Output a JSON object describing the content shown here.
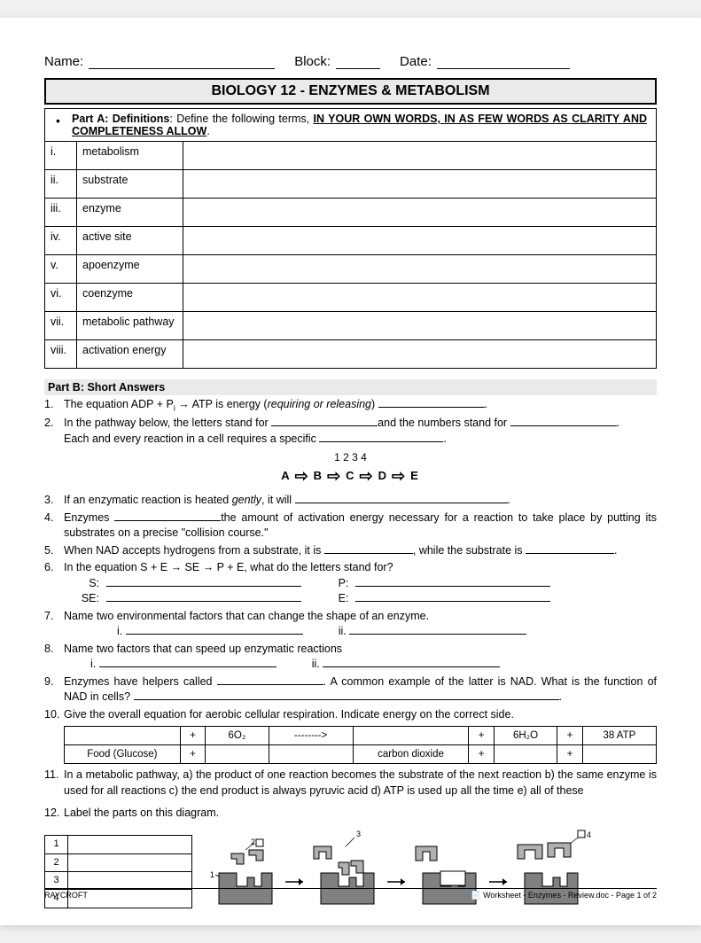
{
  "header": {
    "name_label": "Name:",
    "block_label": "Block:",
    "date_label": "Date:"
  },
  "title": "BIOLOGY 12 - ENZYMES & METABOLISM",
  "partA": {
    "instruction_prefix": "Part A: Definitions",
    "instruction_mid": ":   Define the following terms, ",
    "instruction_underlined": "IN YOUR OWN WORDS, IN AS FEW WORDS AS CLARITY AND COMPLETENESS ALLOW",
    "rows": [
      {
        "num": "i.",
        "term": "metabolism"
      },
      {
        "num": "ii.",
        "term": "substrate"
      },
      {
        "num": "iii.",
        "term": "enzyme"
      },
      {
        "num": "iv.",
        "term": "active site"
      },
      {
        "num": "v.",
        "term": "apoenzyme"
      },
      {
        "num": "vi.",
        "term": "coenzyme"
      },
      {
        "num": "vii.",
        "term": "metabolic pathway"
      },
      {
        "num": "viii.",
        "term": "activation energy"
      }
    ]
  },
  "partB": {
    "header": "Part B:  Short Answers",
    "q1_a": "The equation ADP + P",
    "q1_b": " →  ATP is energy (",
    "q1_c": "requiring or releasing",
    "q1_d": ") ",
    "q2_a": "In the pathway below, the letters stand for ",
    "q2_b": "and the numbers stand for ",
    "q2_c": "Each and every reaction in a cell requires a specific ",
    "pathway_nums": "1                2                3                4",
    "pathway_letters": [
      "A",
      "B",
      "C",
      "D",
      "E"
    ],
    "q3": "If an enzymatic reaction is heated ",
    "q3_italic": "gently",
    "q3_b": ", it will ",
    "q4_a": "Enzymes ",
    "q4_b": "the amount of activation energy necessary for a reaction to take place by putting its substrates on a precise \"collision course.\"",
    "q5_a": "When NAD accepts hydrogens from a substrate, it is ",
    "q5_b": ", while the substrate is ",
    "q6": "In the equation S + E → SE → P + E, what do the letters stand for?",
    "q6_S": "S:",
    "q6_SE": "SE:",
    "q6_P": "P:",
    "q6_E": "E:",
    "q7": "Name two environmental factors that can change the shape of an enzyme.",
    "q8": "Name two factors that can speed up enzymatic reactions",
    "sub_i": "i.",
    "sub_ii": "ii.",
    "q9_a": "Enzymes have helpers called ",
    "q9_b": ".  A common example of the latter is NAD.  What is the function of NAD in cells? ",
    "q10": "Give the overall equation for aerobic cellular respiration.  Indicate energy on the correct side.",
    "eq_r1": [
      "",
      "+",
      "6O₂",
      "-------->",
      "",
      "+",
      "6H₂O",
      "+",
      "38 ATP"
    ],
    "eq_r2": [
      "Food (Glucose)",
      "+",
      "",
      "",
      "carbon dioxide",
      "+",
      "",
      "+",
      ""
    ],
    "q11": "In a metabolic pathway, a) the product of one reaction becomes the substrate of the next reaction  b) the same enzyme is used for all reactions  c) the end product is always pyruvic acid  d) ATP is used up all the time  e) all of these",
    "q12": "Label the parts on this diagram.",
    "label_nums": [
      "1",
      "2",
      "3",
      "4"
    ]
  },
  "footer": {
    "left": "RAYCROFT",
    "right": "Worksheet - Enzymes - Review.doc - Page 1 of 2"
  },
  "colors": {
    "page_bg": "#ffffff",
    "title_bg": "#eaeaea",
    "enzyme_fill": "#808080",
    "enzyme_outline": "#000000"
  }
}
